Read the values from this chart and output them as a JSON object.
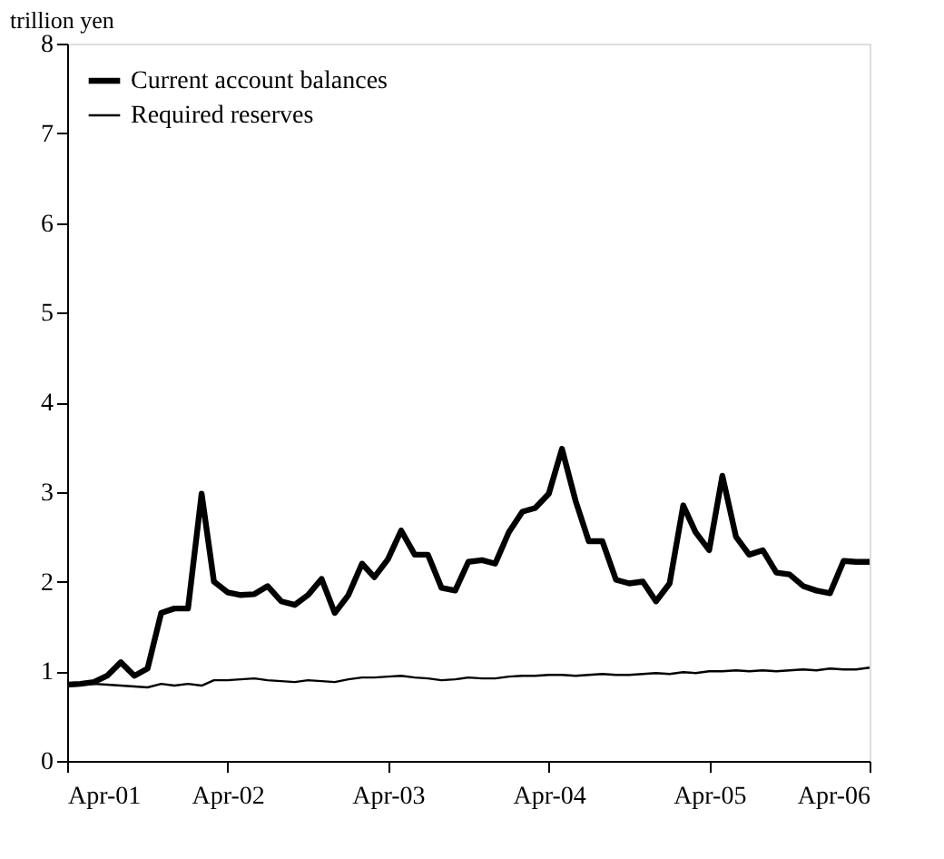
{
  "chart_data": {
    "type": "line",
    "ylabel": "trillion yen",
    "x": [
      "2001-04",
      "2001-05",
      "2001-06",
      "2001-07",
      "2001-08",
      "2001-09",
      "2001-10",
      "2001-11",
      "2001-12",
      "2002-01",
      "2002-02",
      "2002-03",
      "2002-04",
      "2002-05",
      "2002-06",
      "2002-07",
      "2002-08",
      "2002-09",
      "2002-10",
      "2002-11",
      "2002-12",
      "2003-01",
      "2003-02",
      "2003-03",
      "2003-04",
      "2003-05",
      "2003-06",
      "2003-07",
      "2003-08",
      "2003-09",
      "2003-10",
      "2003-11",
      "2003-12",
      "2004-01",
      "2004-02",
      "2004-03",
      "2004-04",
      "2004-05",
      "2004-06",
      "2004-07",
      "2004-08",
      "2004-09",
      "2004-10",
      "2004-11",
      "2004-12",
      "2005-01",
      "2005-02",
      "2005-03",
      "2005-04",
      "2005-05",
      "2005-06",
      "2005-07",
      "2005-08",
      "2005-09",
      "2005-10",
      "2005-11",
      "2005-12",
      "2006-01",
      "2006-02",
      "2006-03",
      "2006-04"
    ],
    "series": [
      {
        "name": "Current account balances",
        "color": "#000000",
        "values": [
          0.85,
          0.86,
          0.88,
          0.95,
          1.1,
          0.95,
          1.03,
          1.65,
          1.7,
          1.7,
          2.98,
          2.0,
          1.88,
          1.85,
          1.86,
          1.95,
          1.78,
          1.74,
          1.85,
          2.03,
          1.65,
          1.85,
          2.2,
          2.05,
          2.25,
          2.57,
          2.3,
          2.3,
          1.93,
          1.9,
          2.22,
          2.24,
          2.2,
          2.55,
          2.78,
          2.82,
          2.98,
          3.48,
          2.9,
          2.45,
          2.45,
          2.02,
          1.98,
          2.0,
          1.78,
          1.98,
          2.85,
          2.55,
          2.35,
          3.18,
          2.5,
          2.3,
          2.35,
          2.1,
          2.08,
          1.95,
          1.9,
          1.87,
          2.23,
          2.22,
          2.22
        ]
      },
      {
        "name": "Required reserves",
        "color": "#000000",
        "values": [
          0.85,
          0.85,
          0.86,
          0.85,
          0.84,
          0.83,
          0.82,
          0.86,
          0.84,
          0.86,
          0.84,
          0.9,
          0.9,
          0.91,
          0.92,
          0.9,
          0.89,
          0.88,
          0.9,
          0.89,
          0.88,
          0.91,
          0.93,
          0.93,
          0.94,
          0.95,
          0.93,
          0.92,
          0.9,
          0.91,
          0.93,
          0.92,
          0.92,
          0.94,
          0.95,
          0.95,
          0.96,
          0.96,
          0.95,
          0.96,
          0.97,
          0.96,
          0.96,
          0.97,
          0.98,
          0.97,
          0.99,
          0.98,
          1.0,
          1.0,
          1.01,
          1.0,
          1.01,
          1.0,
          1.01,
          1.02,
          1.01,
          1.03,
          1.02,
          1.02,
          1.04
        ]
      }
    ],
    "xlim": [
      "2001-04",
      "2006-04"
    ],
    "xticks": [
      {
        "value": "2001-04",
        "label": "Apr-01"
      },
      {
        "value": "2002-04",
        "label": "Apr-02"
      },
      {
        "value": "2003-04",
        "label": "Apr-03"
      },
      {
        "value": "2004-04",
        "label": "Apr-04"
      },
      {
        "value": "2005-04",
        "label": "Apr-05"
      },
      {
        "value": "2006-04",
        "label": "Apr-06"
      }
    ],
    "ylim": [
      0,
      8
    ],
    "yticks": [
      0,
      1,
      2,
      3,
      4,
      5,
      6,
      7,
      8
    ],
    "legend": "top left",
    "grid": false
  }
}
